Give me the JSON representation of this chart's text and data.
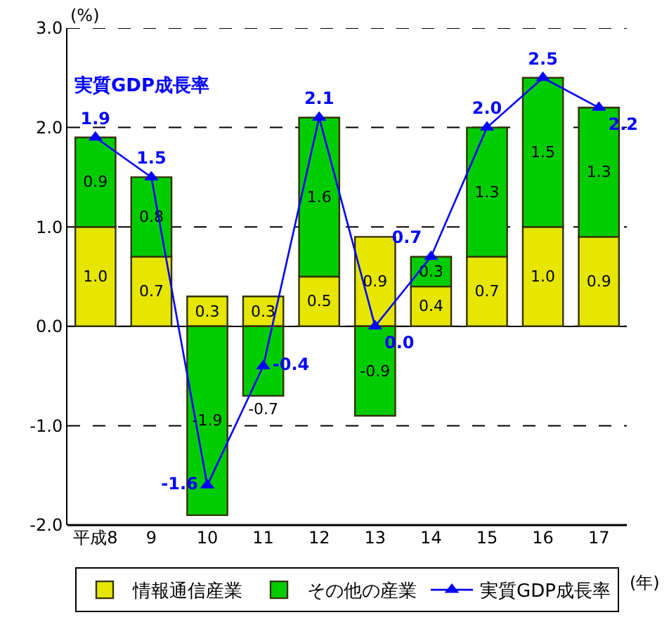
{
  "chart_data": {
    "type": "bar",
    "stacked": true,
    "categories": [
      "平成8",
      "9",
      "10",
      "11",
      "12",
      "13",
      "14",
      "15",
      "16",
      "17"
    ],
    "xlabel": "(年)",
    "ylabel": "(%)",
    "series": [
      {
        "name": "情報通信産業",
        "type": "bar",
        "color": "#e6e600",
        "values": [
          1.0,
          0.7,
          0.3,
          0.3,
          0.5,
          0.9,
          0.4,
          0.7,
          1.0,
          0.9
        ],
        "value_labels": [
          "1.0",
          "0.7",
          "0.3",
          "0.3",
          "0.5",
          "0.9",
          "0.4",
          "0.7",
          "1.0",
          "0.9"
        ]
      },
      {
        "name": "その他の産業",
        "type": "bar",
        "color": "#00cc00",
        "values": [
          0.9,
          0.8,
          -1.9,
          -0.7,
          1.6,
          -0.9,
          0.3,
          1.3,
          1.5,
          1.3
        ],
        "value_labels": [
          "0.9",
          "0.8",
          "-1.9",
          "-0.7",
          "1.6",
          "-0.9",
          "0.3",
          "1.3",
          "1.5",
          "1.3"
        ]
      },
      {
        "name": "実質GDP成長率",
        "type": "line",
        "color": "#0000ff",
        "marker": "triangle",
        "values": [
          1.9,
          1.5,
          -1.6,
          -0.4,
          2.1,
          0.0,
          0.7,
          2.0,
          2.5,
          2.2
        ],
        "value_labels": [
          "1.9",
          "1.5",
          "-1.6",
          "-0.4",
          "2.1",
          "0.0",
          "0.7",
          "2.0",
          "2.5",
          "2.2"
        ]
      }
    ],
    "annotations": [
      "実質GDP成長率"
    ],
    "ylim": [
      -2,
      3
    ],
    "yticks": [
      {
        "value": -2,
        "label": "-2.0"
      },
      {
        "value": -1,
        "label": "-1.0"
      },
      {
        "value": 0,
        "label": "0.0"
      },
      {
        "value": 1,
        "label": "1.0"
      },
      {
        "value": 2,
        "label": "2.0"
      },
      {
        "value": 3,
        "label": "3.0"
      }
    ],
    "grid": "y",
    "legend": "bottom"
  }
}
